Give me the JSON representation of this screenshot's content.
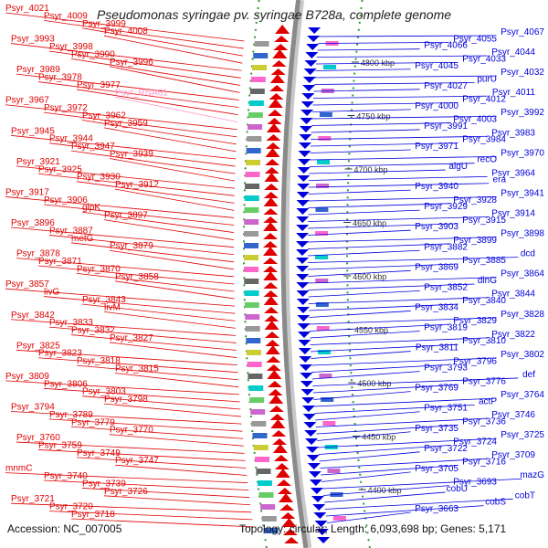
{
  "title": "Pseudomonas syringae pv. syringae B728a, complete genome",
  "accession": "Accession: NC_007005",
  "summary": "Topology: circular; Length: 6,093,698 bp; Genes: 5,171",
  "colors": {
    "left_genes": "#e00000",
    "right_genes": "#0000dd",
    "rna_label": "#ff99cc",
    "backbone": "#8a8a8a",
    "tick_dots": "#339933"
  },
  "scale_labels": [
    "4800 kbp",
    "4750 kbp",
    "4700 kbp",
    "4650 kbp",
    "4600 kbp",
    "4550 kbp",
    "4500 kbp",
    "4450 kbp",
    "4400 kbp"
  ],
  "left_labels": [
    "Psyr_4021",
    "Psyr_4009",
    "Psyr_3999",
    "Psyr_4008",
    "Psyr_3993",
    "Psyr_3998",
    "Psyr_3990",
    "Psyr_3996",
    "Psyr_3989",
    "Psyr_3978",
    "Psyr_3977",
    "Psyr_RNA61",
    "Psyr_3967",
    "Psyr_3972",
    "Psyr_3962",
    "Psyr_3959",
    "Psyr_3945",
    "Psyr_3944",
    "Psyr_3947",
    "Psyr_3939",
    "Psyr_3921",
    "Psyr_3925",
    "Psyr_3930",
    "Psyr_3912",
    "Psyr_3917",
    "Psyr_3906",
    "glpK",
    "Psyr_3897",
    "Psyr_3896",
    "Psyr_3887",
    "metG",
    "Psyr_3879",
    "Psyr_3878",
    "Psyr_3871",
    "Psyr_3870",
    "Psyr_3858",
    "Psyr_3857",
    "livG",
    "Psyr_3843",
    "livM",
    "Psyr_3842",
    "Psyr_3833",
    "Psyr_3832",
    "Psyr_3827",
    "Psyr_3825",
    "Psyr_3823",
    "Psyr_3818",
    "Psyr_3815",
    "Psyr_3809",
    "Psyr_3806",
    "Psyr_3803",
    "Psyr_3798",
    "Psyr_3794",
    "Psyr_3789",
    "Psyr_3779",
    "Psyr_3770",
    "Psyr_3760",
    "Psyr_3759",
    "Psyr_3749",
    "Psyr_3747",
    "mnmC",
    "Psyr_3740",
    "Psyr_3739",
    "Psyr_3726",
    "Psyr_3721",
    "Psyr_3720",
    "Psyr_3718"
  ],
  "right_labels": [
    "Psyr_4067",
    "Psyr_4055",
    "Psyr_4066",
    "Psyr_4044",
    "Psyr_4033",
    "Psyr_4045",
    "Psyr_4032",
    "purU",
    "Psyr_4027",
    "Psyr_4011",
    "Psyr_4012",
    "Psyr_4000",
    "Psyr_3992",
    "Psyr_4003",
    "Psyr_3991",
    "Psyr_3983",
    "Psyr_3984",
    "Psyr_3971",
    "Psyr_3970",
    "recO",
    "algU",
    "Psyr_3964",
    "era",
    "Psyr_3940",
    "Psyr_3941",
    "Psyr_3928",
    "Psyr_3929",
    "Psyr_3914",
    "Psyr_3915",
    "Psyr_3903",
    "Psyr_3898",
    "Psyr_3899",
    "Psyr_3882",
    "dcd",
    "Psyr_3885",
    "Psyr_3869",
    "Psyr_3864",
    "dinG",
    "Psyr_3852",
    "Psyr_3844",
    "Psyr_3840",
    "Psyr_3834",
    "Psyr_3828",
    "Psyr_3829",
    "Psyr_3819",
    "Psyr_3822",
    "Psyr_3810",
    "Psyr_3811",
    "Psyr_3802",
    "Psyr_3796",
    "Psyr_3793",
    "def",
    "Psyr_3776",
    "Psyr_3769",
    "Psyr_3764",
    "actP",
    "Psyr_3751",
    "Psyr_3746",
    "Psyr_3736",
    "Psyr_3735",
    "Psyr_3725",
    "Psyr_3724",
    "Psyr_3722",
    "Psyr_3709",
    "Psyr_3716",
    "Psyr_3705",
    "mazG",
    "Psyr_3693",
    "cobU",
    "cobT",
    "cobS",
    "Psyr_3663"
  ]
}
